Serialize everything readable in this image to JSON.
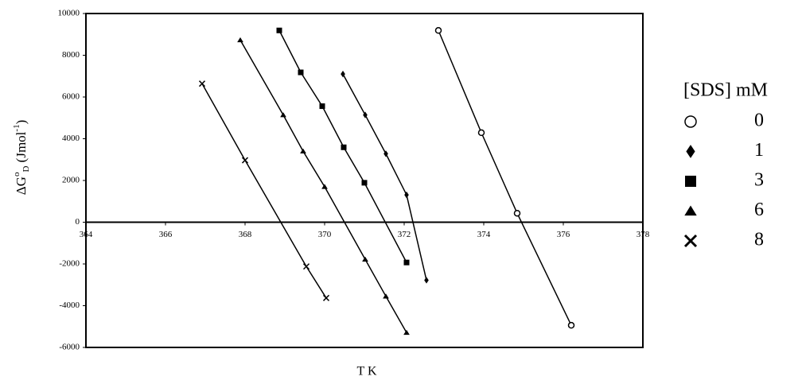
{
  "chart_data": {
    "type": "line",
    "x_label": "T K",
    "y_label": [
      "ΔG",
      "o",
      "D",
      " (Jmol",
      "-1",
      ")"
    ],
    "legend_title": "[SDS] mM",
    "xlim": [
      364,
      378
    ],
    "xticks": [
      364,
      366,
      368,
      370,
      372,
      374,
      376,
      378
    ],
    "ylim": [
      -6000,
      10000
    ],
    "yticks": [
      -6000,
      -4000,
      -2000,
      0,
      2000,
      4000,
      6000,
      8000,
      10000
    ],
    "series": [
      {
        "name": "0",
        "marker": "circle",
        "color": "#000000",
        "x": [
          372.86,
          373.94,
          374.84,
          376.2
        ],
        "values": [
          9190,
          4290,
          430,
          -4940
        ]
      },
      {
        "name": "1",
        "marker": "diamond",
        "color": "#000000",
        "x": [
          370.46,
          371.02,
          371.54,
          372.06,
          372.56
        ],
        "values": [
          7100,
          5140,
          3280,
          1310,
          -2780
        ]
      },
      {
        "name": "3",
        "marker": "square",
        "color": "#000000",
        "x": [
          368.86,
          369.4,
          369.94,
          370.48,
          371.0,
          372.06
        ],
        "values": [
          9190,
          7180,
          5560,
          3590,
          1890,
          -1930
        ]
      },
      {
        "name": "6",
        "marker": "triangle",
        "color": "#000000",
        "x": [
          367.88,
          368.96,
          369.46,
          370.0,
          371.02,
          371.54,
          372.06
        ],
        "values": [
          8730,
          5140,
          3400,
          1700,
          -1780,
          -3550,
          -5290
        ]
      },
      {
        "name": "8",
        "marker": "x",
        "color": "#000000",
        "x": [
          366.92,
          368.0,
          369.54,
          370.04
        ],
        "values": [
          6640,
          2970,
          -2120,
          -3630
        ]
      }
    ]
  }
}
